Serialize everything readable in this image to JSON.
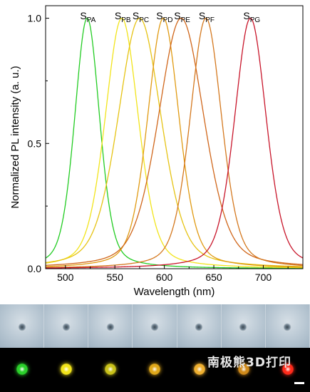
{
  "chart_data": {
    "type": "line",
    "xlabel": "Wavelength (nm)",
    "ylabel": "Normalized PL intensity (a. u.)",
    "xlim": [
      480,
      740
    ],
    "ylim": [
      0,
      1.05
    ],
    "xticks": [
      500,
      550,
      600,
      650,
      700
    ],
    "yticks": [
      0.0,
      0.5,
      1.0
    ],
    "ytick_labels": [
      "0.0",
      "0.5",
      "1.0"
    ],
    "grid": false,
    "series": [
      {
        "name": "S",
        "sub": "PA",
        "color": "#22cc22",
        "peak": 522,
        "fwhm": 30
      },
      {
        "name": "S",
        "sub": "PB",
        "color": "#f2e41a",
        "peak": 557,
        "fwhm": 40
      },
      {
        "name": "S",
        "sub": "PC",
        "color": "#e6c313",
        "peak": 575,
        "fwhm": 52
      },
      {
        "name": "S",
        "sub": "PD",
        "color": "#e09a12",
        "peak": 599,
        "fwhm": 38
      },
      {
        "name": "S",
        "sub": "PE",
        "color": "#d0661a",
        "peak": 617,
        "fwhm": 55
      },
      {
        "name": "S",
        "sub": "PF",
        "color": "#d4781e",
        "peak": 642,
        "fwhm": 38
      },
      {
        "name": "S",
        "sub": "PG",
        "color": "#c8152a",
        "peak": 687,
        "fwhm": 38
      }
    ]
  },
  "micrographs": {
    "brightfield_panels": 7,
    "fluorescence_dots": [
      "#2bd02b",
      "#f2e41a",
      "#c9c21a",
      "#e0a81a",
      "#f0b030",
      "#d08a1a",
      "#ff2a1a"
    ]
  },
  "watermark": "南极熊3D打印"
}
